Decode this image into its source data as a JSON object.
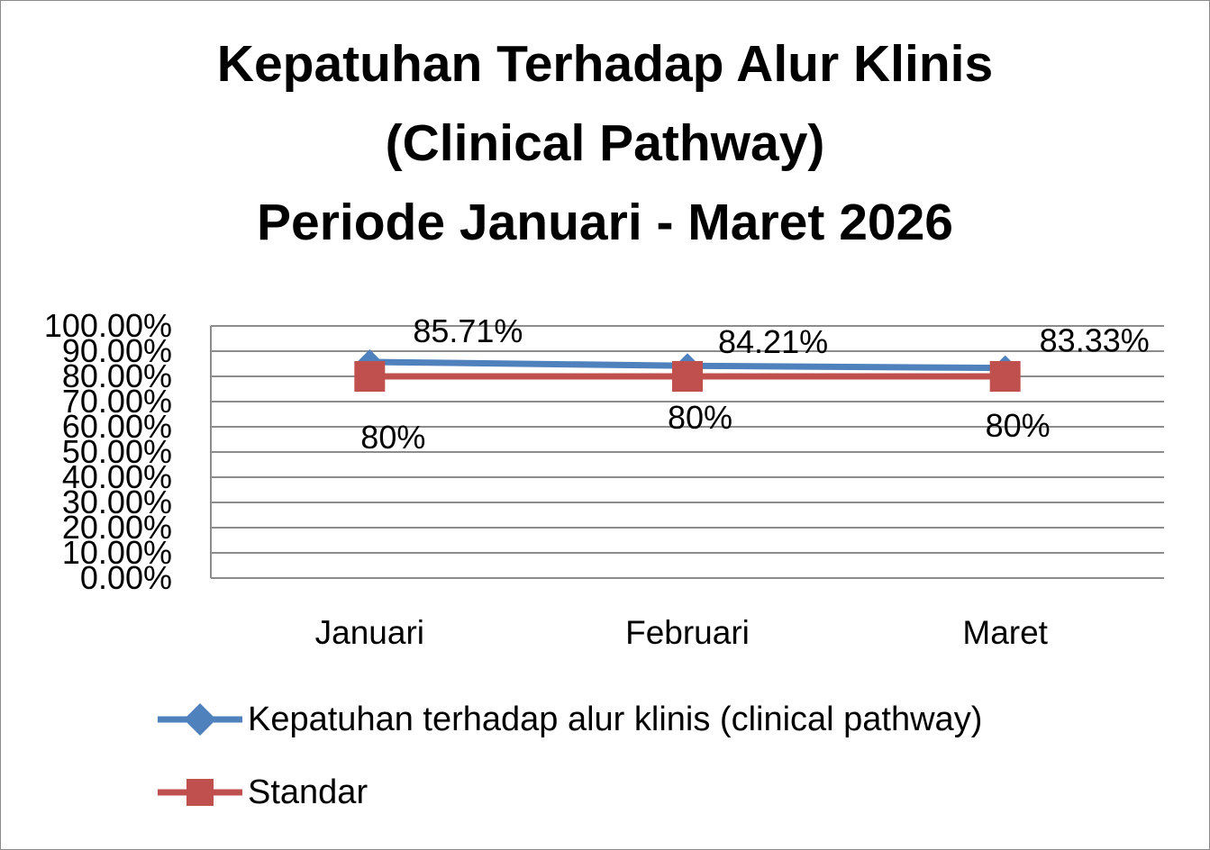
{
  "chart_data": {
    "type": "line",
    "title_lines": [
      "Kepatuhan Terhadap Alur Klinis",
      "(Clinical Pathway)",
      "Periode Januari - Maret 2026"
    ],
    "categories": [
      "Januari",
      "Februari",
      "Maret"
    ],
    "y_ticks": [
      "0.00%",
      "10.00%",
      "20.00%",
      "30.00%",
      "40.00%",
      "50.00%",
      "60.00%",
      "70.00%",
      "80.00%",
      "90.00%",
      "100.00%"
    ],
    "ylim": [
      0,
      1
    ],
    "grid": true,
    "legend_position": "bottom",
    "series": [
      {
        "name": "Kepatuhan terhadap alur klinis (clinical pathway)",
        "values": [
          0.8571,
          0.8421,
          0.8333
        ],
        "labels": [
          "85.71%",
          "84.21%",
          "83.33%"
        ],
        "color": "#4f81bd",
        "marker": "diamond"
      },
      {
        "name": "Standar",
        "values": [
          0.8,
          0.8,
          0.8
        ],
        "labels": [
          "80%",
          "80%",
          "80%"
        ],
        "color": "#c0504d",
        "marker": "square"
      }
    ]
  }
}
